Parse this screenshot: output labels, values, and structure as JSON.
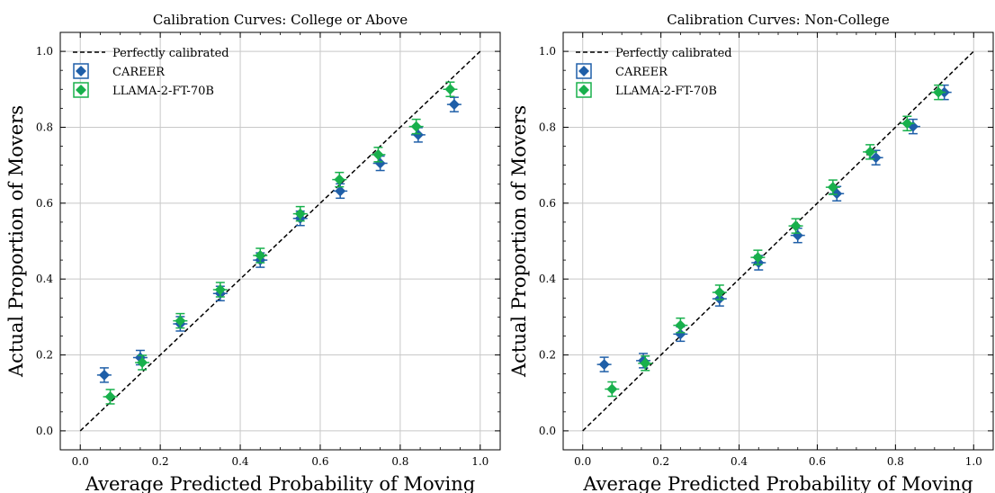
{
  "chart_data": [
    {
      "type": "scatter",
      "title": "Calibration Curves: College or Above",
      "xlabel": "Average Predicted Probability of Moving",
      "ylabel": "Actual Proportion of Movers",
      "xlim": [
        -0.05,
        1.05
      ],
      "ylim": [
        -0.05,
        1.05
      ],
      "xticks": [
        "0.0",
        "0.2",
        "0.4",
        "0.6",
        "0.8",
        "1.0"
      ],
      "yticks": [
        "0.0",
        "0.2",
        "0.4",
        "0.6",
        "0.8",
        "1.0"
      ],
      "grid": true,
      "legend": "top-left",
      "reference_line": {
        "name": "Perfectly calibrated",
        "x": [
          0,
          1
        ],
        "y": [
          0,
          1
        ],
        "color": "#000000"
      },
      "series": [
        {
          "name": "CAREER",
          "color": "#1f5fa8",
          "x": [
            0.06,
            0.15,
            0.25,
            0.35,
            0.45,
            0.55,
            0.65,
            0.75,
            0.845,
            0.935
          ],
          "y": [
            0.147,
            0.193,
            0.282,
            0.362,
            0.45,
            0.56,
            0.632,
            0.705,
            0.78,
            0.86
          ]
        },
        {
          "name": "LLAMA-2-FT-70B",
          "color": "#18b04c",
          "x": [
            0.075,
            0.155,
            0.25,
            0.35,
            0.45,
            0.55,
            0.648,
            0.745,
            0.84,
            0.925
          ],
          "y": [
            0.09,
            0.18,
            0.29,
            0.372,
            0.462,
            0.572,
            0.662,
            0.728,
            0.802,
            0.9
          ]
        }
      ]
    },
    {
      "type": "scatter",
      "title": "Calibration Curves: Non-College",
      "xlabel": "Average Predicted Probability of Moving",
      "ylabel": "Actual Proportion of Movers",
      "xlim": [
        -0.05,
        1.05
      ],
      "ylim": [
        -0.05,
        1.05
      ],
      "xticks": [
        "0.0",
        "0.2",
        "0.4",
        "0.6",
        "0.8",
        "1.0"
      ],
      "yticks": [
        "0.0",
        "0.2",
        "0.4",
        "0.6",
        "0.8",
        "1.0"
      ],
      "grid": true,
      "legend": "top-left",
      "reference_line": {
        "name": "Perfectly calibrated",
        "x": [
          0,
          1
        ],
        "y": [
          0,
          1
        ],
        "color": "#000000"
      },
      "series": [
        {
          "name": "CAREER",
          "color": "#1f5fa8",
          "x": [
            0.055,
            0.155,
            0.25,
            0.35,
            0.45,
            0.55,
            0.65,
            0.75,
            0.845,
            0.925
          ],
          "y": [
            0.175,
            0.185,
            0.255,
            0.348,
            0.443,
            0.515,
            0.625,
            0.72,
            0.802,
            0.892
          ]
        },
        {
          "name": "LLAMA-2-FT-70B",
          "color": "#18b04c",
          "x": [
            0.075,
            0.16,
            0.25,
            0.35,
            0.448,
            0.545,
            0.64,
            0.735,
            0.83,
            0.91
          ],
          "y": [
            0.11,
            0.178,
            0.278,
            0.365,
            0.457,
            0.54,
            0.642,
            0.735,
            0.81,
            0.892
          ]
        }
      ]
    }
  ]
}
